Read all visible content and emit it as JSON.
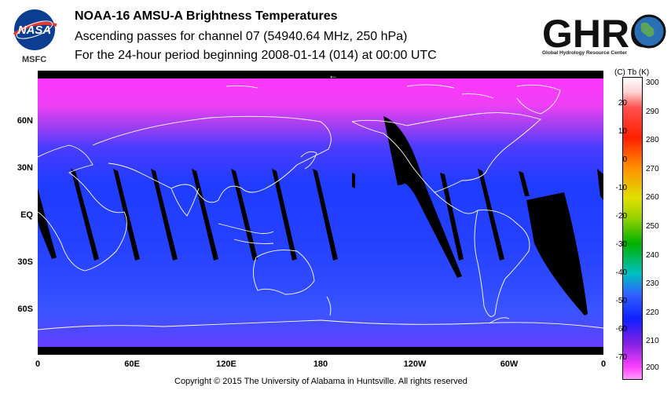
{
  "header": {
    "title": "NOAA-16 AMSU-A Brightness Temperatures",
    "subtitle_1": "Ascending passes for channel 07 (54940.64 MHz, 250 hPa)",
    "subtitle_2": "For the 24-hour period beginning 2008-01-14 (014) at 00:00 UTC"
  },
  "logos": {
    "nasa_text": "NASA",
    "nasa_center": "MSFC",
    "ghrc_text": "GHRC",
    "ghrc_subtitle": "Global Hydrology Resource Center"
  },
  "map": {
    "lat_labels": [
      "60N",
      "30N",
      "EQ",
      "30S",
      "60S"
    ],
    "lon_labels": [
      "0",
      "60E",
      "120E",
      "180",
      "120W",
      "60W",
      "0"
    ],
    "direction_arrow": "←"
  },
  "colorbar": {
    "header": "(C)  Tb  (K)",
    "celsius_ticks": [
      "20",
      "10",
      "0",
      "-10",
      "-20",
      "-30",
      "-40",
      "-50",
      "-60",
      "-70"
    ],
    "kelvin_ticks": [
      "300",
      "290",
      "280",
      "270",
      "260",
      "250",
      "240",
      "230",
      "220",
      "210",
      "200"
    ],
    "kelvin_range": [
      195,
      300
    ]
  },
  "footer": {
    "copyright": "Copyright © 2015 The University of Alabama in Huntsville.  All rights reserved"
  },
  "colors": {
    "polar_magenta": "#ff33ff",
    "mid_purple": "#8a2be2",
    "tropical_blue": "#1f3cff",
    "no_data": "#000000",
    "coastline": "#ffffff"
  }
}
